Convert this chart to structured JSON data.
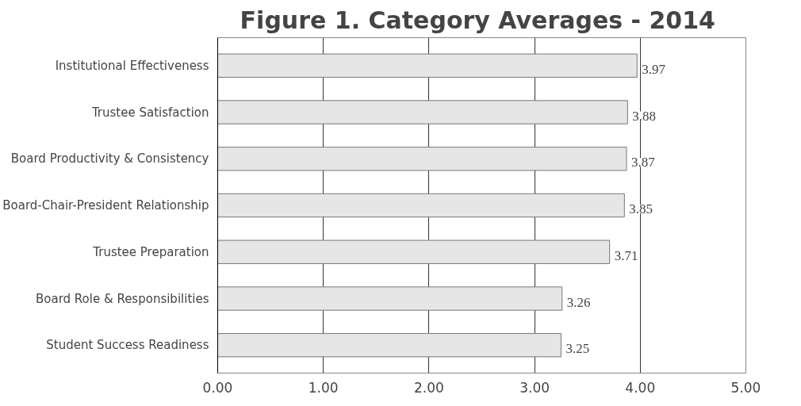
{
  "chart_data": {
    "type": "bar",
    "orientation": "horizontal",
    "title": "Figure 1.  Category Averages - 2014",
    "categories": [
      "Institutional Effectiveness",
      "Trustee Satisfaction",
      "Board Productivity & Consistency",
      "Board-Chair-President Relationship",
      "Trustee Preparation",
      "Board Role & Responsibilities",
      "Student Success Readiness"
    ],
    "values": [
      3.97,
      3.88,
      3.87,
      3.85,
      3.71,
      3.26,
      3.25
    ],
    "color": "#e6e6e6",
    "xlim": [
      0,
      5
    ],
    "xticks": [
      {
        "value": 0,
        "label": "0.00"
      },
      {
        "value": 1,
        "label": "1.00"
      },
      {
        "value": 2,
        "label": "2.00"
      },
      {
        "value": 3,
        "label": "3.00"
      },
      {
        "value": 4,
        "label": "4.00"
      },
      {
        "value": 5,
        "label": "5.00"
      }
    ],
    "grid": "x",
    "data_labels": true
  }
}
